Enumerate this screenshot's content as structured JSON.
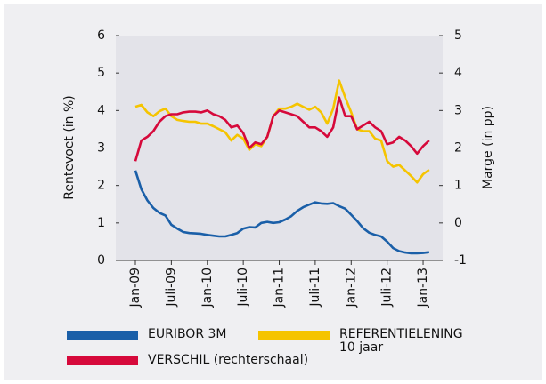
{
  "chart_data": {
    "type": "line",
    "ylabel": "Rentevoet (in %)",
    "y2label": "Marge (in pp)",
    "categories": [
      "Jan-09",
      null,
      null,
      null,
      null,
      null,
      "Juli-09",
      null,
      null,
      null,
      null,
      null,
      "Jan-10",
      null,
      null,
      null,
      null,
      null,
      "Juli-10",
      null,
      null,
      null,
      null,
      null,
      "Jan-11",
      null,
      null,
      null,
      null,
      null,
      "Juli-11",
      null,
      null,
      null,
      null,
      null,
      "Jan-12",
      null,
      null,
      null,
      null,
      null,
      "Juli-12",
      null,
      null,
      null,
      null,
      null,
      "Jan-13",
      null
    ],
    "ylim": [
      0,
      6
    ],
    "yticks": [
      0,
      1,
      2,
      3,
      4,
      5,
      6
    ],
    "y2lim": [
      -1,
      5
    ],
    "y2ticks": [
      -1,
      0,
      1,
      2,
      3,
      4,
      5
    ],
    "series": [
      {
        "name": "EURIBOR 3M",
        "color": "#1a5fa8",
        "values": [
          2.4,
          1.9,
          1.6,
          1.4,
          1.27,
          1.2,
          0.95,
          0.85,
          0.76,
          0.73,
          0.72,
          0.71,
          0.68,
          0.66,
          0.64,
          0.64,
          0.68,
          0.73,
          0.85,
          0.89,
          0.88,
          1.0,
          1.03,
          1.0,
          1.02,
          1.09,
          1.18,
          1.32,
          1.42,
          1.49,
          1.55,
          1.52,
          1.51,
          1.53,
          1.45,
          1.38,
          1.22,
          1.05,
          0.86,
          0.74,
          0.68,
          0.64,
          0.5,
          0.33,
          0.25,
          0.21,
          0.19,
          0.19,
          0.2,
          0.22
        ]
      },
      {
        "name": "REFERENTIELENING 10 jaar",
        "color": "#f5c400",
        "values": [
          4.1,
          4.15,
          3.95,
          3.85,
          3.98,
          4.05,
          3.85,
          3.75,
          3.72,
          3.7,
          3.7,
          3.65,
          3.65,
          3.58,
          3.5,
          3.42,
          3.2,
          3.35,
          3.25,
          2.95,
          3.1,
          3.05,
          3.3,
          3.85,
          4.05,
          4.05,
          4.1,
          4.18,
          4.1,
          4.02,
          4.1,
          3.95,
          3.65,
          4.05,
          4.8,
          4.35,
          3.95,
          3.5,
          3.45,
          3.45,
          3.25,
          3.2,
          2.65,
          2.5,
          2.55,
          2.4,
          2.25,
          2.08,
          2.3,
          2.42
        ]
      },
      {
        "name": "VERSCHIL (rechterschaal)",
        "color": "#d6093b",
        "axis": "y2",
        "values": [
          1.65,
          2.2,
          2.3,
          2.45,
          2.7,
          2.85,
          2.9,
          2.9,
          2.95,
          2.97,
          2.97,
          2.95,
          3.0,
          2.9,
          2.85,
          2.75,
          2.55,
          2.6,
          2.4,
          2.0,
          2.15,
          2.1,
          2.3,
          2.85,
          3.0,
          2.95,
          2.9,
          2.85,
          2.7,
          2.55,
          2.55,
          2.45,
          2.3,
          2.55,
          3.35,
          2.85,
          2.85,
          2.5,
          2.6,
          2.7,
          2.55,
          2.45,
          2.1,
          2.15,
          2.3,
          2.2,
          2.05,
          1.85,
          2.05,
          2.2
        ]
      }
    ]
  }
}
